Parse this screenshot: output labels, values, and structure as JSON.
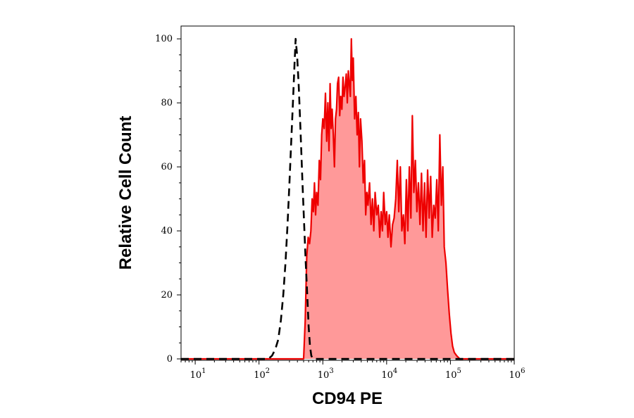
{
  "chart_data": {
    "type": "area",
    "title": "",
    "xlabel": "CD94 PE",
    "ylabel": "Relative Cell Count",
    "xscale": "log",
    "xlim": [
      6,
      1000000
    ],
    "ylim": [
      0,
      104
    ],
    "grid": false,
    "legend": "none",
    "x_ticks": [
      {
        "base": "10",
        "exp": "1",
        "value": 10
      },
      {
        "base": "10",
        "exp": "2",
        "value": 100
      },
      {
        "base": "10",
        "exp": "3",
        "value": 1000
      },
      {
        "base": "10",
        "exp": "4",
        "value": 10000
      },
      {
        "base": "10",
        "exp": "5",
        "value": 100000
      },
      {
        "base": "10",
        "exp": "6",
        "value": 1000000
      }
    ],
    "y_ticks": [
      {
        "label": "0",
        "value": 0
      },
      {
        "label": "20",
        "value": 20
      },
      {
        "label": "40",
        "value": 40
      },
      {
        "label": "60",
        "value": 60
      },
      {
        "label": "80",
        "value": 80
      },
      {
        "label": "100",
        "value": 100
      }
    ],
    "series": [
      {
        "style": "dashed",
        "color": "#000000",
        "fill": "none",
        "points": [
          [
            6,
            0
          ],
          [
            140,
            0
          ],
          [
            160,
            1
          ],
          [
            180,
            3
          ],
          [
            200,
            6
          ],
          [
            220,
            12
          ],
          [
            240,
            20
          ],
          [
            260,
            30
          ],
          [
            280,
            42
          ],
          [
            300,
            55
          ],
          [
            320,
            68
          ],
          [
            340,
            80
          ],
          [
            360,
            92
          ],
          [
            375,
            100
          ],
          [
            395,
            95
          ],
          [
            420,
            85
          ],
          [
            450,
            70
          ],
          [
            480,
            55
          ],
          [
            510,
            42
          ],
          [
            540,
            30
          ],
          [
            570,
            20
          ],
          [
            600,
            10
          ],
          [
            630,
            4
          ],
          [
            660,
            1
          ],
          [
            700,
            0
          ],
          [
            1000000,
            0
          ]
        ]
      },
      {
        "style": "solid",
        "color": "#ee0000",
        "fill": "#ff9999",
        "points": [
          [
            6,
            0
          ],
          [
            500,
            0
          ],
          [
            530,
            12
          ],
          [
            560,
            32
          ],
          [
            590,
            38
          ],
          [
            620,
            36
          ],
          [
            650,
            40
          ],
          [
            680,
            50
          ],
          [
            710,
            46
          ],
          [
            740,
            55
          ],
          [
            770,
            45
          ],
          [
            800,
            52
          ],
          [
            840,
            48
          ],
          [
            880,
            62
          ],
          [
            920,
            56
          ],
          [
            960,
            70
          ],
          [
            1000,
            75
          ],
          [
            1050,
            72
          ],
          [
            1100,
            83
          ],
          [
            1150,
            68
          ],
          [
            1200,
            80
          ],
          [
            1250,
            65
          ],
          [
            1300,
            86
          ],
          [
            1350,
            72
          ],
          [
            1400,
            78
          ],
          [
            1460,
            70
          ],
          [
            1520,
            60
          ],
          [
            1580,
            75
          ],
          [
            1640,
            78
          ],
          [
            1700,
            86
          ],
          [
            1770,
            88
          ],
          [
            1840,
            76
          ],
          [
            1910,
            82
          ],
          [
            1990,
            78
          ],
          [
            2070,
            88
          ],
          [
            2150,
            82
          ],
          [
            2240,
            85
          ],
          [
            2330,
            89
          ],
          [
            2420,
            80
          ],
          [
            2510,
            90
          ],
          [
            2600,
            86
          ],
          [
            2700,
            82
          ],
          [
            2800,
            100
          ],
          [
            2900,
            87
          ],
          [
            3000,
            94
          ],
          [
            3150,
            75
          ],
          [
            3300,
            82
          ],
          [
            3450,
            70
          ],
          [
            3600,
            77
          ],
          [
            3750,
            60
          ],
          [
            3900,
            75
          ],
          [
            4100,
            68
          ],
          [
            4300,
            55
          ],
          [
            4500,
            62
          ],
          [
            4700,
            45
          ],
          [
            4900,
            52
          ],
          [
            5100,
            48
          ],
          [
            5400,
            55
          ],
          [
            5700,
            42
          ],
          [
            6000,
            50
          ],
          [
            6300,
            40
          ],
          [
            6600,
            52
          ],
          [
            7000,
            45
          ],
          [
            7400,
            48
          ],
          [
            7800,
            38
          ],
          [
            8200,
            46
          ],
          [
            8600,
            40
          ],
          [
            9000,
            52
          ],
          [
            9500,
            42
          ],
          [
            10000,
            46
          ],
          [
            10500,
            38
          ],
          [
            11000,
            45
          ],
          [
            11700,
            35
          ],
          [
            12400,
            42
          ],
          [
            13100,
            44
          ],
          [
            13900,
            50
          ],
          [
            14700,
            62
          ],
          [
            15500,
            46
          ],
          [
            16400,
            60
          ],
          [
            17300,
            40
          ],
          [
            18300,
            45
          ],
          [
            19300,
            36
          ],
          [
            20400,
            56
          ],
          [
            21500,
            40
          ],
          [
            22700,
            60
          ],
          [
            24000,
            44
          ],
          [
            25300,
            76
          ],
          [
            26700,
            52
          ],
          [
            28200,
            62
          ],
          [
            29800,
            46
          ],
          [
            31500,
            55
          ],
          [
            33300,
            42
          ],
          [
            35200,
            58
          ],
          [
            37200,
            40
          ],
          [
            39300,
            55
          ],
          [
            41500,
            38
          ],
          [
            43900,
            59
          ],
          [
            46400,
            44
          ],
          [
            49000,
            57
          ],
          [
            51800,
            38
          ],
          [
            54700,
            48
          ],
          [
            57800,
            44
          ],
          [
            61100,
            56
          ],
          [
            64500,
            40
          ],
          [
            68200,
            70
          ],
          [
            72000,
            48
          ],
          [
            76000,
            60
          ],
          [
            80000,
            35
          ],
          [
            85000,
            30
          ],
          [
            90000,
            22
          ],
          [
            96000,
            14
          ],
          [
            102000,
            8
          ],
          [
            108000,
            4
          ],
          [
            115000,
            2
          ],
          [
            125000,
            1
          ],
          [
            140000,
            0
          ],
          [
            1000000,
            0
          ]
        ]
      }
    ]
  }
}
